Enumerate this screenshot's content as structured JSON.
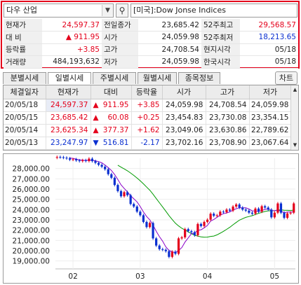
{
  "search": {
    "symbol": "다우 산업",
    "dropdown_icon": "▼",
    "search_icon": "⚲",
    "index_name": "[미국]:Dow Jonse Indices"
  },
  "quote": {
    "rows": [
      [
        {
          "t": "현재가",
          "k": "lbl"
        },
        {
          "t": "24,597.37",
          "k": "up"
        },
        {
          "t": "전일종가",
          "k": "lbl"
        },
        {
          "t": "23,685.42",
          "k": "neutral"
        },
        {
          "t": "52주최고",
          "k": "lbl"
        },
        {
          "t": "29,568.57",
          "k": "up"
        }
      ],
      [
        {
          "t": "대  비",
          "k": "lbl"
        },
        {
          "t": "▲     911.95",
          "k": "up"
        },
        {
          "t": "시가",
          "k": "lbl"
        },
        {
          "t": "24,059.98",
          "k": "neutral"
        },
        {
          "t": "52주최저",
          "k": "lbl"
        },
        {
          "t": "18,213.65",
          "k": "down"
        }
      ],
      [
        {
          "t": "등락률",
          "k": "lbl"
        },
        {
          "t": "+3.85",
          "k": "up"
        },
        {
          "t": "고가",
          "k": "lbl"
        },
        {
          "t": "24,708.54",
          "k": "neutral"
        },
        {
          "t": "현지시각",
          "k": "lbl"
        },
        {
          "t": "05/18",
          "k": "neutral"
        }
      ],
      [
        {
          "t": "거래량",
          "k": "lbl"
        },
        {
          "t": "484,193,632",
          "k": "neutral"
        },
        {
          "t": "저가",
          "k": "lbl"
        },
        {
          "t": "24,059.98",
          "k": "neutral"
        },
        {
          "t": "한국시각",
          "k": "lbl"
        },
        {
          "t": "05/18",
          "k": "neutral"
        }
      ]
    ]
  },
  "tabs": [
    "분별시세",
    "일별시세",
    "주별시세",
    "월별시세",
    "종목정보"
  ],
  "active_tab": 1,
  "chart_button": "차트",
  "daily": {
    "columns": [
      "체결일자",
      "현재가",
      "대비",
      "등락율",
      "시가",
      "고가",
      "저가"
    ],
    "rows": [
      {
        "date": "20/05/18",
        "close": "24,597.37",
        "dir": "up",
        "sign": "▲",
        "chg": "911.95",
        "pct": "+3.85",
        "open": "24,059.98",
        "high": "24,708.54",
        "low": "24,059.98"
      },
      {
        "date": "20/05/15",
        "close": "23,685.42",
        "dir": "up",
        "sign": "▲",
        "chg": "60.08",
        "pct": "+0.25",
        "open": "23,454.83",
        "high": "23,730.08",
        "low": "23,354.15"
      },
      {
        "date": "20/05/14",
        "close": "23,625.34",
        "dir": "up",
        "sign": "▲",
        "chg": "377.37",
        "pct": "+1.62",
        "open": "23,049.06",
        "high": "23,630.86",
        "low": "22,789.62"
      },
      {
        "date": "20/05/13",
        "close": "23,247.97",
        "dir": "down",
        "sign": "▼",
        "chg": "516.81",
        "pct": "-2.17",
        "open": "23,702.16",
        "high": "23,708.90",
        "low": "23,067.64"
      }
    ]
  },
  "chart_data": {
    "type": "candlestick",
    "y_ticks": [
      "28,000.00",
      "27,000.00",
      "26,000.00",
      "25,000.00",
      "24,000.00",
      "23,000.00",
      "22,000.00",
      "21,000.00",
      "20,000.00",
      "19,000.00"
    ],
    "y_tick_values": [
      28000,
      27000,
      26000,
      25000,
      24000,
      23000,
      22000,
      21000,
      20000,
      19000
    ],
    "ylim": [
      18500,
      29000
    ],
    "x_ticks": [
      {
        "label": "02",
        "index": 5
      },
      {
        "label": "03",
        "index": 26
      },
      {
        "label": "04",
        "index": 47
      },
      {
        "label": "05",
        "index": 68
      }
    ],
    "up_color": "#e4001b",
    "down_color": "#0a2fd0",
    "ma_short_color": "#8a00c8",
    "ma_long_color": "#009a00",
    "closes": [
      29120,
      29100,
      29050,
      28990,
      28860,
      28900,
      28790,
      28720,
      28810,
      28730,
      28960,
      28720,
      28550,
      28360,
      28180,
      27930,
      27450,
      27100,
      26400,
      25800,
      25300,
      25700,
      25400,
      24550,
      24300,
      23800,
      23450,
      22800,
      22300,
      22700,
      21200,
      20500,
      20150,
      20090,
      19950,
      19400,
      19900,
      19700,
      21200,
      21300,
      22100,
      21900,
      21800,
      21500,
      22600,
      22400,
      22800,
      23020,
      23600,
      23400,
      23450,
      23800,
      23750,
      24000,
      23900,
      24300,
      24500,
      24200,
      24000,
      23900,
      23700,
      23600,
      24100,
      23800,
      24330,
      24200,
      24000,
      23250,
      23700,
      24600,
      23700,
      23200,
      23630,
      23690,
      24600
    ],
    "opens": [
      29050,
      29120,
      29100,
      29050,
      28990,
      28860,
      28900,
      28790,
      28720,
      28810,
      28730,
      28960,
      28720,
      28550,
      28360,
      28180,
      27930,
      27450,
      27100,
      26400,
      25800,
      25300,
      25700,
      25400,
      24550,
      24300,
      23800,
      23450,
      22800,
      22300,
      22700,
      21200,
      20500,
      20150,
      20090,
      19950,
      19400,
      19900,
      19700,
      21200,
      21300,
      22100,
      21900,
      21800,
      21500,
      22600,
      22400,
      22800,
      23020,
      23600,
      23400,
      23450,
      23800,
      23750,
      24000,
      23900,
      24300,
      24500,
      24200,
      24000,
      23900,
      23700,
      23600,
      24100,
      23800,
      24330,
      24200,
      24000,
      23250,
      23700,
      24600,
      23700,
      23200,
      23630,
      23700
    ]
  }
}
